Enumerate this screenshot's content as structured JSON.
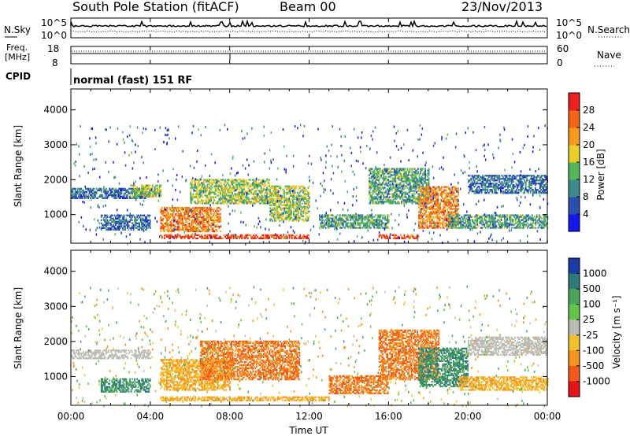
{
  "header": {
    "station": "South Pole Station (fitACF)",
    "beam": "Beam 00",
    "date": "23/Nov/2013"
  },
  "noise_panel": {
    "left_label": "N.Sky",
    "left_ticks": [
      "10^5",
      "10^0"
    ],
    "right_label": "N.Search",
    "right_ticks": [
      "10^5",
      "10^0"
    ]
  },
  "freq_panel": {
    "left_label_1": "Freq.",
    "left_label_2": "[MHz]",
    "left_ticks": [
      "18",
      "8"
    ],
    "right_label": "Nave",
    "right_ticks": [
      "60",
      "0"
    ]
  },
  "cpid_panel": {
    "label": "CPID",
    "program": "normal (fast) 151 RF"
  },
  "x_axis": {
    "label": "Time UT",
    "ticks": [
      "00:00",
      "04:00",
      "08:00",
      "12:00",
      "16:00",
      "20:00",
      "00:00"
    ]
  },
  "y_axis": {
    "label": "Slant Range [km]",
    "ticks": [
      "1000",
      "2000",
      "3000",
      "4000"
    ]
  },
  "power_colorbar": {
    "label": "Power [dB]",
    "ticks": [
      "4",
      "8",
      "12",
      "16",
      "20",
      "24",
      "28"
    ],
    "colors": [
      "#1515ee",
      "#2a4fb0",
      "#3f8a8a",
      "#55b65a",
      "#e8cf2a",
      "#f79a1f",
      "#f2661a",
      "#e8221e"
    ]
  },
  "velocity_colorbar": {
    "label": "Velocity [m s⁻¹]",
    "ticks": [
      "1000",
      "500",
      "100",
      "25",
      "-25",
      "-100",
      "-500",
      "-1000"
    ],
    "colors": [
      "#1a3aa8",
      "#2e7a7a",
      "#4aa55a",
      "#62c44a",
      "#bcbcb4",
      "#f2c22e",
      "#f7941f",
      "#f25a1a",
      "#e0141a"
    ]
  },
  "chart_data": [
    {
      "type": "heatmap",
      "title": "Power",
      "xlabel": "Time UT",
      "ylabel": "Slant Range [km]",
      "xlim": [
        0,
        24
      ],
      "ylim": [
        180,
        4600
      ],
      "legend": "right colorbar",
      "series": [
        {
          "x": [
            0,
            4
          ],
          "y": [
            1450,
            1750
          ],
          "value": 8
        },
        {
          "x": [
            3,
            4.5
          ],
          "y": [
            1500,
            1850
          ],
          "value": 16
        },
        {
          "x": [
            1.5,
            4
          ],
          "y": [
            550,
            1000
          ],
          "value": 8
        },
        {
          "x": [
            4.5,
            7.5
          ],
          "y": [
            500,
            1200
          ],
          "value": 24
        },
        {
          "x": [
            4.5,
            12
          ],
          "y": [
            300,
            420
          ],
          "value": 28
        },
        {
          "x": [
            6,
            10
          ],
          "y": [
            1300,
            2000
          ],
          "value": 16
        },
        {
          "x": [
            10,
            12
          ],
          "y": [
            800,
            1800
          ],
          "value": 16
        },
        {
          "x": [
            12.5,
            16
          ],
          "y": [
            600,
            1000
          ],
          "value": 12
        },
        {
          "x": [
            15.5,
            17.5
          ],
          "y": [
            300,
            400
          ],
          "value": 28
        },
        {
          "x": [
            15,
            18
          ],
          "y": [
            1300,
            2300
          ],
          "value": 12
        },
        {
          "x": [
            17.5,
            19.5
          ],
          "y": [
            600,
            1800
          ],
          "value": 24
        },
        {
          "x": [
            20,
            24
          ],
          "y": [
            1600,
            2100
          ],
          "value": 8
        },
        {
          "x": [
            19,
            24
          ],
          "y": [
            600,
            1000
          ],
          "value": 12
        }
      ]
    },
    {
      "type": "heatmap",
      "title": "Velocity",
      "xlabel": "Time UT",
      "ylabel": "Slant Range [km]",
      "xlim": [
        0,
        24
      ],
      "ylim": [
        180,
        4600
      ],
      "legend": "right colorbar",
      "series": [
        {
          "x": [
            0,
            4
          ],
          "y": [
            1500,
            1750
          ],
          "value": 0
        },
        {
          "x": [
            1.5,
            4
          ],
          "y": [
            550,
            950
          ],
          "value": 500
        },
        {
          "x": [
            4.5,
            8
          ],
          "y": [
            600,
            1500
          ],
          "value": -100
        },
        {
          "x": [
            4.5,
            13
          ],
          "y": [
            300,
            400
          ],
          "value": -100
        },
        {
          "x": [
            6.5,
            11.5
          ],
          "y": [
            900,
            2000
          ],
          "value": -500
        },
        {
          "x": [
            13,
            16
          ],
          "y": [
            500,
            1000
          ],
          "value": -500
        },
        {
          "x": [
            15.5,
            18.5
          ],
          "y": [
            900,
            2300
          ],
          "value": -500
        },
        {
          "x": [
            17.5,
            20
          ],
          "y": [
            700,
            1800
          ],
          "value": 500
        },
        {
          "x": [
            20,
            24
          ],
          "y": [
            1600,
            2100
          ],
          "value": 0
        },
        {
          "x": [
            19.5,
            24
          ],
          "y": [
            600,
            1000
          ],
          "value": -100
        }
      ]
    }
  ]
}
